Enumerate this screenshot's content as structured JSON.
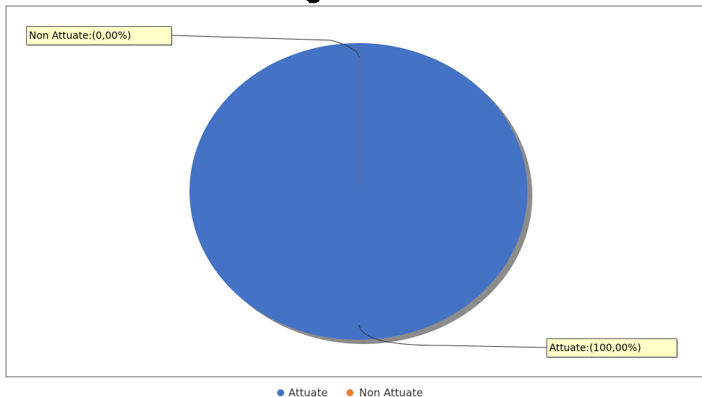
{
  "chart_data": {
    "type": "pie",
    "title": "",
    "categories": [
      "Attuate",
      "Non Attuate"
    ],
    "values": [
      100,
      0
    ],
    "colors": [
      "#4472c4",
      "#ed7d31"
    ],
    "labels": [
      "Attuate:(100,00%)",
      "Non Attuate:(0,00%)"
    ],
    "legend": {
      "position": "bottom",
      "entries": [
        "Attuate",
        "Non Attuate"
      ]
    }
  }
}
